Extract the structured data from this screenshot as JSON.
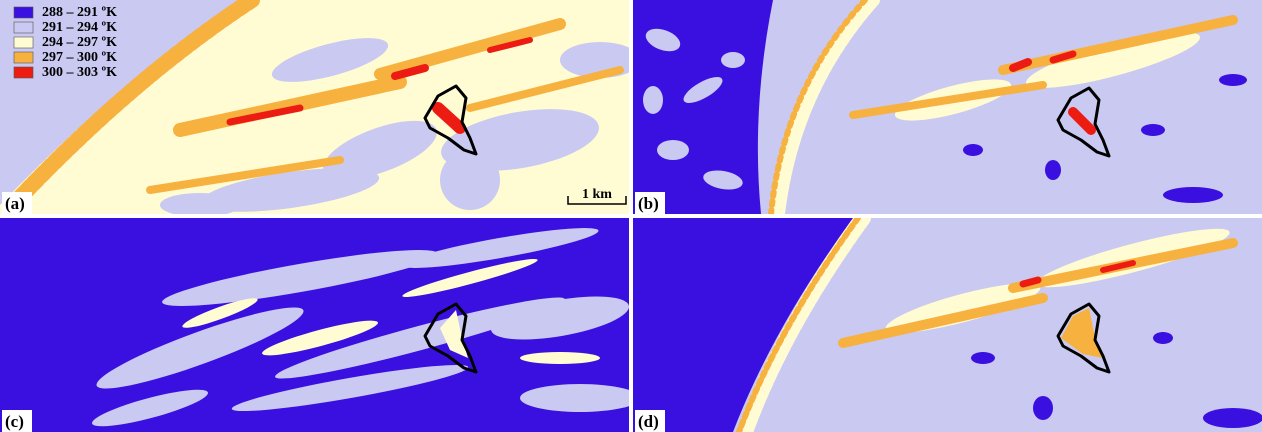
{
  "legend": [
    {
      "label": "288 – 291 ºK",
      "color": "#3a10e0"
    },
    {
      "label": "291 – 294 ºK",
      "color": "#c9c9f2"
    },
    {
      "label": "294 – 297 ºK",
      "color": "#fffbd2"
    },
    {
      "label": "297 – 300 ºK",
      "color": "#f7b13f"
    },
    {
      "label": "300 – 303 ºK",
      "color": "#ec1c12"
    }
  ],
  "panels": [
    {
      "label": "(a)"
    },
    {
      "label": "(b)"
    },
    {
      "label": "(c)"
    },
    {
      "label": "(d)"
    }
  ],
  "scale_bar": "1 km"
}
